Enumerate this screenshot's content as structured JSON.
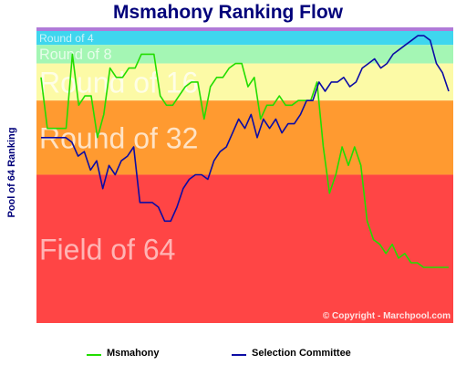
{
  "chart_data": {
    "type": "line",
    "title": "Msmahony Ranking Flow",
    "ylabel": "Pool of 64 Ranking",
    "xlabel": "",
    "ylim": [
      64,
      1
    ],
    "grid": false,
    "legend": "bottom",
    "watermark": "© Copyright - Marchpool.com",
    "bands": [
      {
        "label": "Round of 4",
        "from": 1,
        "to": 4,
        "color": "#3fd6ee"
      },
      {
        "label": "Round of 8",
        "from": 4,
        "to": 8,
        "color": "#a4f6b4"
      },
      {
        "label": "Round of 16",
        "from": 8,
        "to": 16,
        "color": "#fcfaa6"
      },
      {
        "label": "Round of 32",
        "from": 16,
        "to": 32,
        "color": "#ff9a30"
      },
      {
        "label": "Field of 64",
        "from": 32,
        "to": 64,
        "color": "#ff4545"
      }
    ],
    "top_strip_color": "#b07ad8",
    "series": [
      {
        "name": "Msmahony",
        "color": "#22dd00",
        "values": [
          11,
          22,
          22,
          22,
          22,
          6,
          17,
          15,
          15,
          24,
          19,
          9,
          11,
          11,
          9,
          9,
          6,
          6,
          6,
          15,
          17,
          17,
          15,
          13,
          12,
          12,
          20,
          13,
          11,
          11,
          9,
          8,
          8,
          13,
          11,
          20,
          17,
          17,
          15,
          17,
          17,
          16,
          16,
          16,
          12,
          26,
          36,
          32,
          26,
          30,
          26,
          30,
          42,
          46,
          47,
          49,
          47,
          50,
          49,
          51,
          51,
          52,
          52,
          52,
          52,
          52
        ]
      },
      {
        "name": "Selection Committee",
        "color": "#0c0ca5",
        "values": [
          24,
          24,
          24,
          24,
          24,
          25,
          28,
          27,
          31,
          29,
          35,
          30,
          32,
          29,
          28,
          26,
          38,
          38,
          38,
          39,
          42,
          42,
          39,
          35,
          33,
          32,
          32,
          33,
          29,
          27,
          26,
          23,
          20,
          22,
          19,
          24,
          20,
          22,
          20,
          23,
          21,
          21,
          19,
          16,
          16,
          12,
          14,
          12,
          12,
          11,
          13,
          12,
          9,
          8,
          7,
          9,
          8,
          6,
          5,
          4,
          3,
          2,
          2,
          3,
          8,
          10,
          14
        ]
      }
    ]
  },
  "legend": {
    "items": [
      {
        "label": "Msmahony",
        "color": "#22dd00"
      },
      {
        "label": "Selection Committee",
        "color": "#0c0ca5"
      }
    ]
  }
}
